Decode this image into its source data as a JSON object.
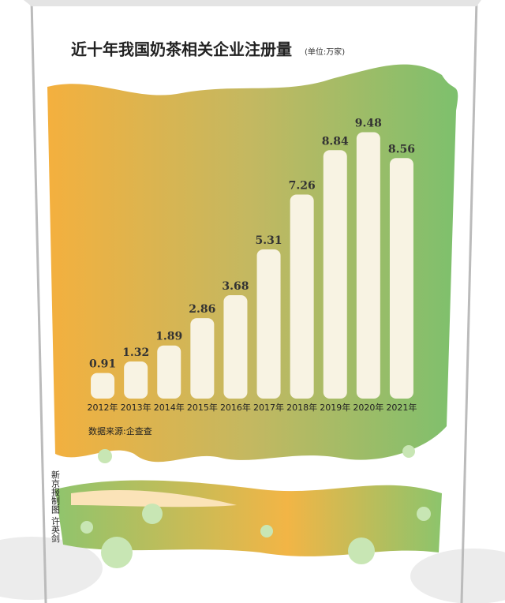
{
  "chart_data": {
    "type": "bar",
    "title": "近十年我国奶茶相关企业注册量",
    "subtitle": "(单位:万家)",
    "source": "数据来源:企查查",
    "credit": "新京报制图 许英剑",
    "categories": [
      "2012年",
      "2013年",
      "2014年",
      "2015年",
      "2016年",
      "2017年",
      "2018年",
      "2019年",
      "2020年",
      "2021年"
    ],
    "values": [
      0.91,
      1.32,
      1.89,
      2.86,
      3.68,
      5.31,
      7.26,
      8.84,
      9.48,
      8.56
    ],
    "color": "#f8f3e3",
    "ylim": [
      0,
      10
    ]
  }
}
